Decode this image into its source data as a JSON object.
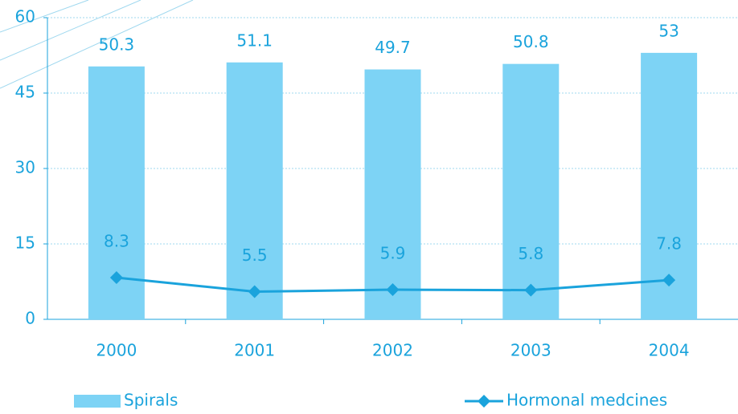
{
  "chart_data": {
    "type": "bar",
    "categories": [
      "2000",
      "2001",
      "2002",
      "2003",
      "2004"
    ],
    "series": [
      {
        "name": "Spirals",
        "type": "bar",
        "color": "#7dd3f5",
        "values": [
          50.3,
          51.1,
          49.7,
          50.8,
          53
        ]
      },
      {
        "name": "Hormonal medcines",
        "type": "line",
        "color": "#1aa3dc",
        "values": [
          8.3,
          5.5,
          5.9,
          5.8,
          7.8
        ]
      }
    ],
    "ylim": [
      0,
      60
    ],
    "yticks": [
      0,
      15,
      30,
      45,
      60
    ],
    "grid": true,
    "legend": "bottom"
  }
}
